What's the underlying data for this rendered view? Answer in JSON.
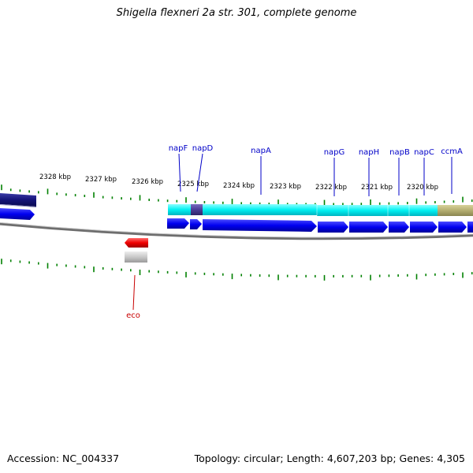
{
  "title": "Shigella flexneri 2a str. 301, complete genome",
  "footer": {
    "accession": "Accession: NC_004337",
    "summary": "Topology: circular; Length: 4,607,203 bp; Genes: 4,305"
  },
  "colors": {
    "background": "#ffffff",
    "cds_blue": "#0000ff",
    "gene_cyan": "#00ffff",
    "gene_navy": "#1a1a8c",
    "gene_purple": "#4b3c96",
    "gene_khaki": "#b4ae70",
    "site_red": "#ff0000",
    "site_grey": "#c8c8c8",
    "tick_green": "#008000",
    "backbone": "#808080",
    "gene_label": "#0000c8",
    "site_label": "#c80000"
  },
  "scale": {
    "unit": "kbp",
    "labels": [
      "2328 kbp",
      "2327 kbp",
      "2326 kbp",
      "2325 kbp",
      "2324 kbp",
      "2323 kbp",
      "2322 kbp",
      "2321 kbp",
      "2320 kbp"
    ]
  },
  "gene_labels": [
    "napF",
    "napD",
    "napA",
    "napG",
    "napH",
    "napB",
    "napC",
    "ccmA"
  ],
  "site_labels": [
    "eco"
  ]
}
